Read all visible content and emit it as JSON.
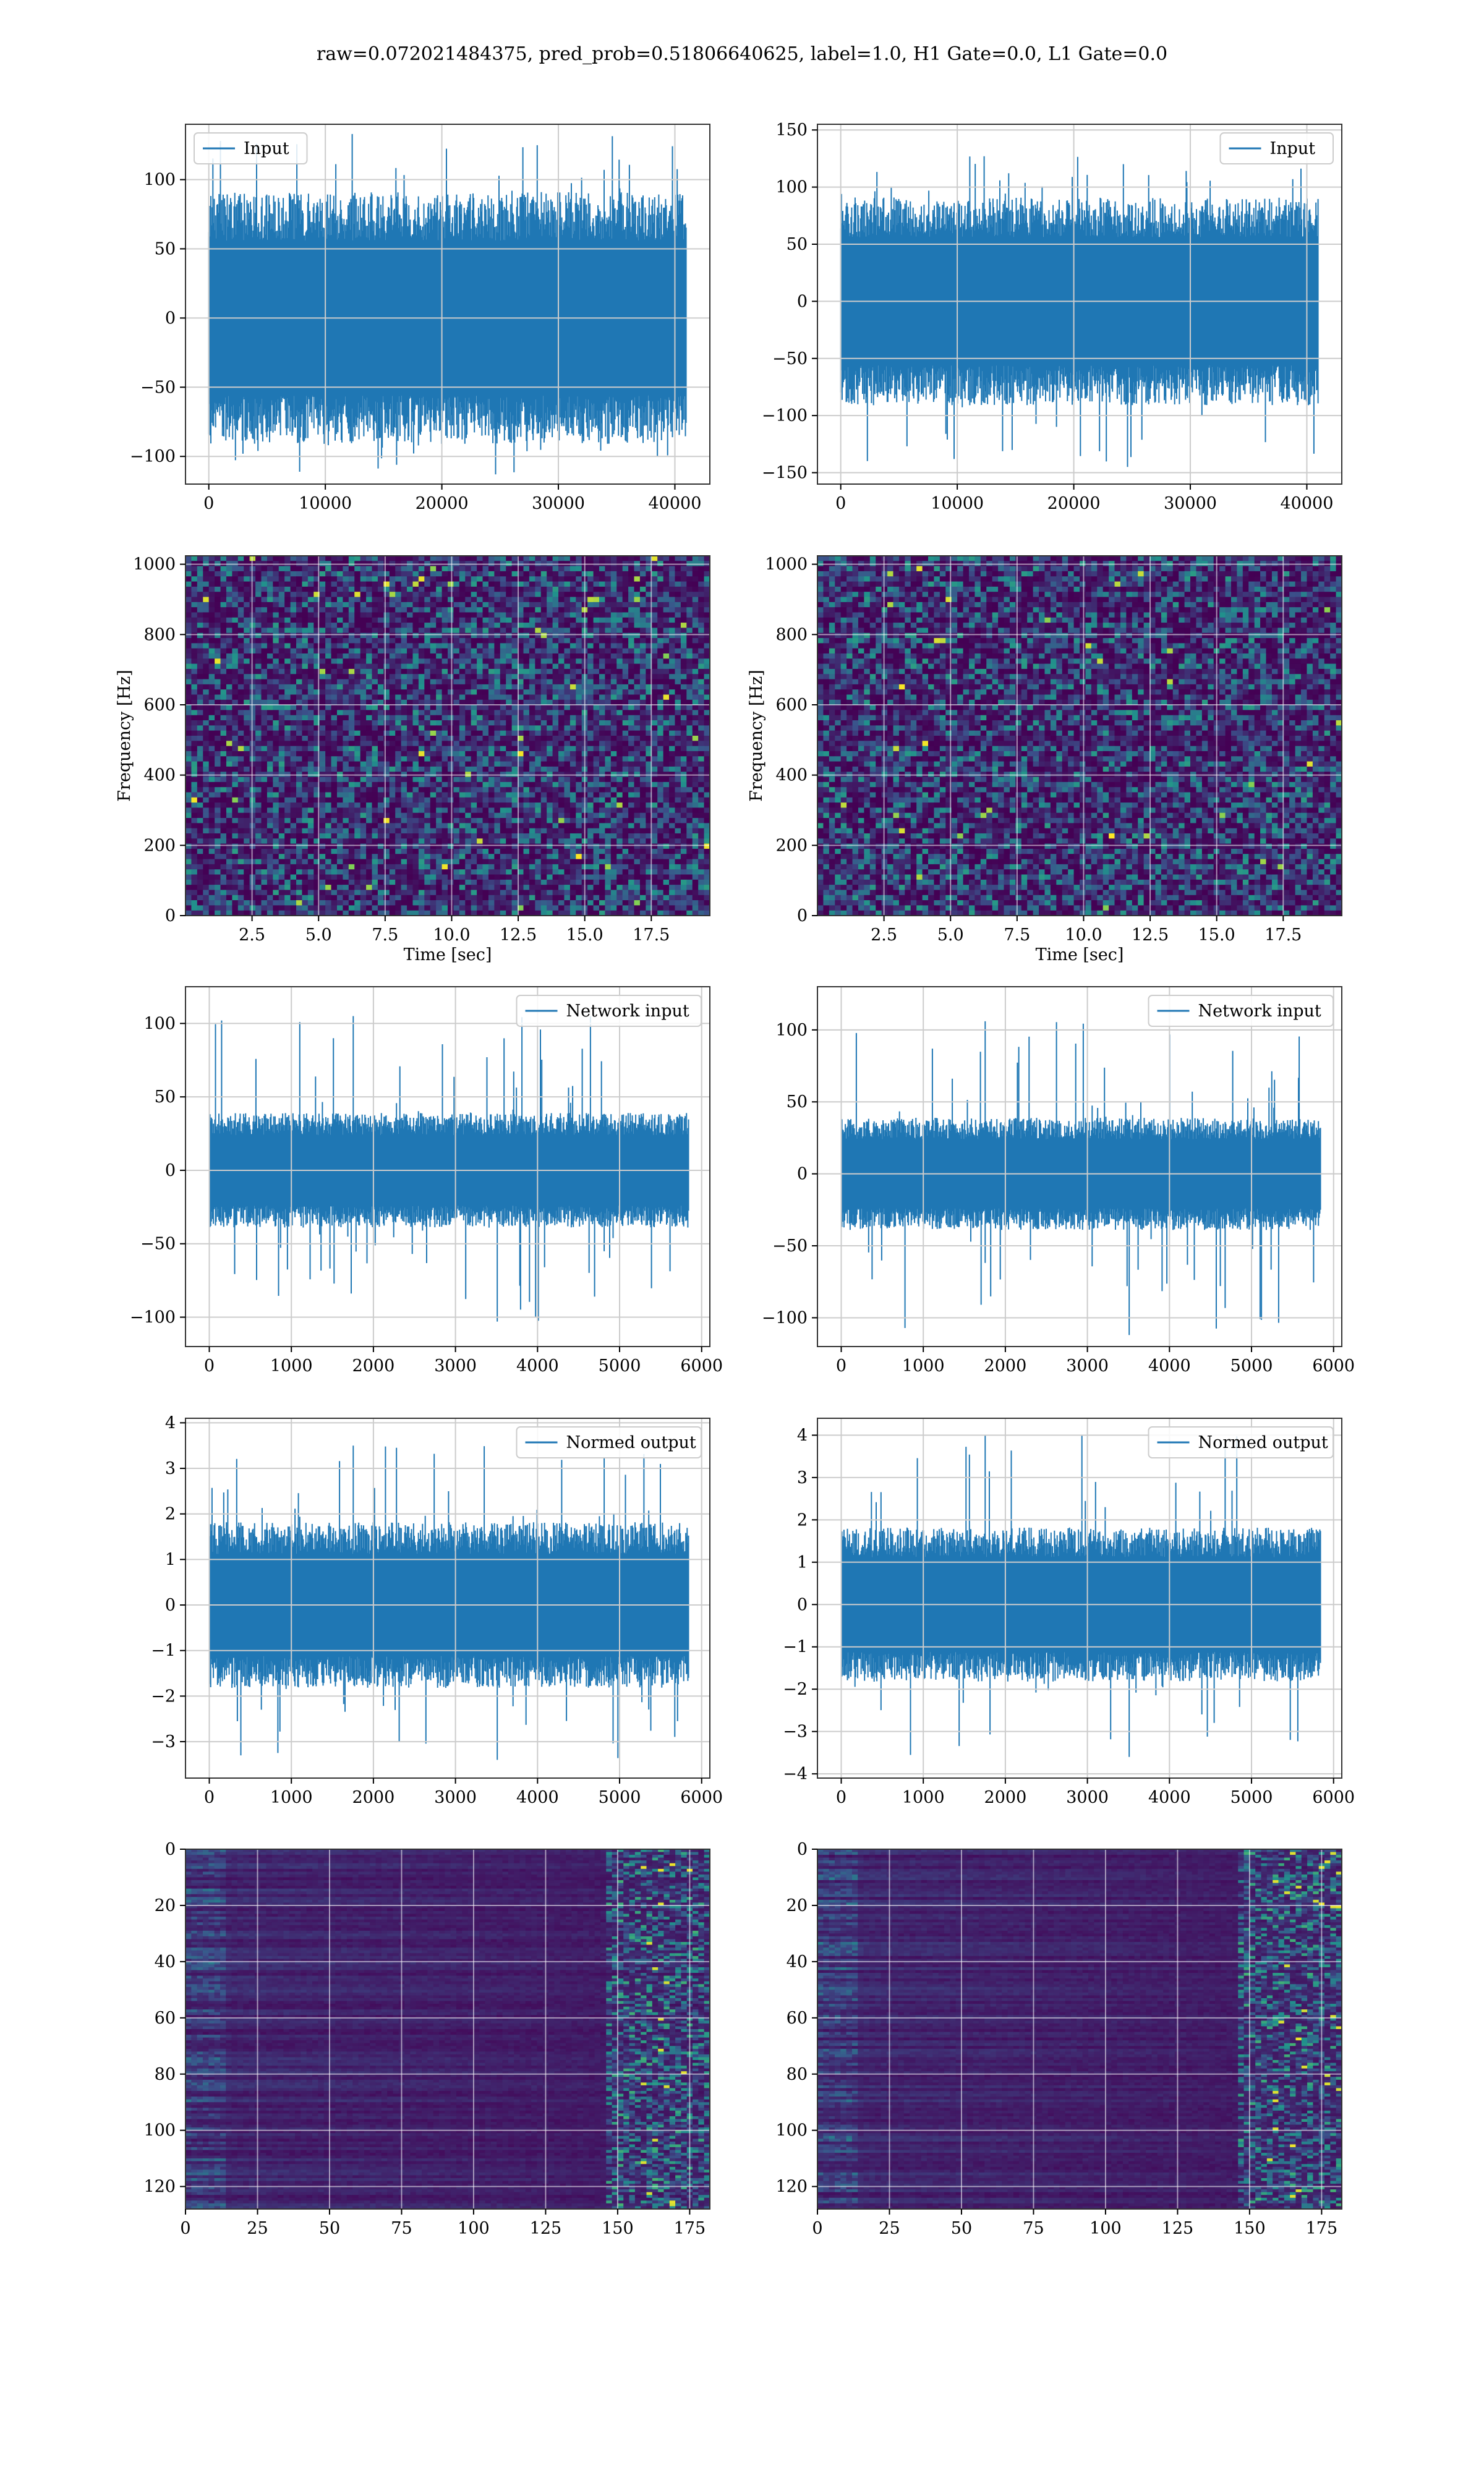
{
  "figure": {
    "title": "raw=0.072021484375, pred_prob=0.51806640625, label=1.0, H1 Gate=0.0, L1 Gate=0.0"
  },
  "colors": {
    "line": "#1f77b4",
    "grid": "#cccccc",
    "heat_low": "#440154",
    "heat_mid": "#21918c",
    "heat_high": "#fde725"
  },
  "chart_data": [
    {
      "id": "input-left",
      "type": "line",
      "row": 0,
      "col": 0,
      "legend": "Input",
      "legend_loc": "upper left",
      "xlim": [
        -2000,
        43000
      ],
      "ylim": [
        -120,
        140
      ],
      "xticks": [
        0,
        10000,
        20000,
        30000,
        40000
      ],
      "yticks": [
        -100,
        -50,
        0,
        50,
        100
      ],
      "signal": {
        "n": 40960,
        "core": 70,
        "peak_max": 133,
        "peak_min": -113
      },
      "grid": true
    },
    {
      "id": "input-right",
      "type": "line",
      "row": 0,
      "col": 1,
      "legend": "Input",
      "legend_loc": "upper right",
      "xlim": [
        -2000,
        43000
      ],
      "ylim": [
        -160,
        155
      ],
      "xticks": [
        0,
        10000,
        20000,
        30000,
        40000
      ],
      "yticks": [
        -150,
        -100,
        -50,
        0,
        50,
        100,
        150
      ],
      "signal": {
        "n": 40960,
        "core": 70,
        "peak_max": 127,
        "peak_min": -145
      },
      "grid": true
    },
    {
      "id": "spectrogram-left",
      "type": "heatmap",
      "row": 1,
      "col": 0,
      "xlabel": "Time [sec]",
      "ylabel": "Frequency [Hz]",
      "xlim": [
        0,
        19.7
      ],
      "ylim": [
        0,
        1024
      ],
      "xticks": [
        2.5,
        5.0,
        7.5,
        10.0,
        12.5,
        15.0,
        17.5
      ],
      "yticks": [
        0,
        200,
        400,
        600,
        800,
        1000
      ],
      "xtick_labels": [
        "2.5",
        "5.0",
        "7.5",
        "10.0",
        "12.5",
        "15.0",
        "17.5"
      ],
      "grid": true
    },
    {
      "id": "spectrogram-right",
      "type": "heatmap",
      "row": 1,
      "col": 1,
      "xlabel": "Time [sec]",
      "ylabel": "Frequency [Hz]",
      "xlim": [
        0,
        19.7
      ],
      "ylim": [
        0,
        1024
      ],
      "xticks": [
        2.5,
        5.0,
        7.5,
        10.0,
        12.5,
        15.0,
        17.5
      ],
      "yticks": [
        0,
        200,
        400,
        600,
        800,
        1000
      ],
      "xtick_labels": [
        "2.5",
        "5.0",
        "7.5",
        "10.0",
        "12.5",
        "15.0",
        "17.5"
      ],
      "grid": true
    },
    {
      "id": "network-input-left",
      "type": "line",
      "row": 2,
      "col": 0,
      "legend": "Network input",
      "legend_loc": "upper right",
      "xlim": [
        -290,
        6100
      ],
      "ylim": [
        -120,
        125
      ],
      "xticks": [
        0,
        1000,
        2000,
        3000,
        4000,
        5000,
        6000
      ],
      "yticks": [
        -100,
        -50,
        0,
        50,
        100
      ],
      "signal": {
        "n": 5840,
        "core": 30,
        "peak_max": 105,
        "peak_min": -103
      },
      "grid": true
    },
    {
      "id": "network-input-right",
      "type": "line",
      "row": 2,
      "col": 1,
      "legend": "Network input",
      "legend_loc": "upper right",
      "xlim": [
        -290,
        6100
      ],
      "ylim": [
        -120,
        130
      ],
      "xticks": [
        0,
        1000,
        2000,
        3000,
        4000,
        5000,
        6000
      ],
      "yticks": [
        -100,
        -50,
        0,
        50,
        100
      ],
      "signal": {
        "n": 5840,
        "core": 30,
        "peak_max": 106,
        "peak_min": -112
      },
      "grid": true
    },
    {
      "id": "normed-output-left",
      "type": "line",
      "row": 3,
      "col": 0,
      "legend": "Normed output",
      "legend_loc": "upper right",
      "xlim": [
        -290,
        6100
      ],
      "ylim": [
        -3.8,
        4.1
      ],
      "xticks": [
        0,
        1000,
        2000,
        3000,
        4000,
        5000,
        6000
      ],
      "yticks": [
        -3,
        -2,
        -1,
        0,
        1,
        2,
        3,
        4
      ],
      "signal": {
        "n": 5840,
        "core": 1.4,
        "peak_max": 3.5,
        "peak_min": -3.4
      },
      "grid": true
    },
    {
      "id": "normed-output-right",
      "type": "line",
      "row": 3,
      "col": 1,
      "legend": "Normed output",
      "legend_loc": "upper right",
      "xlim": [
        -290,
        6100
      ],
      "ylim": [
        -4.1,
        4.4
      ],
      "xticks": [
        0,
        1000,
        2000,
        3000,
        4000,
        5000,
        6000
      ],
      "yticks": [
        -4,
        -3,
        -2,
        -1,
        0,
        1,
        2,
        3,
        4
      ],
      "signal": {
        "n": 5840,
        "core": 1.4,
        "peak_max": 4.0,
        "peak_min": -3.6
      },
      "grid": true
    },
    {
      "id": "feature-map-left",
      "type": "heatmap",
      "row": 4,
      "col": 0,
      "xlim": [
        0,
        182
      ],
      "ylim": [
        128,
        0
      ],
      "xticks": [
        0,
        25,
        50,
        75,
        100,
        125,
        150,
        175
      ],
      "yticks": [
        0,
        20,
        40,
        60,
        80,
        100,
        120
      ],
      "grid": true
    },
    {
      "id": "feature-map-right",
      "type": "heatmap",
      "row": 4,
      "col": 1,
      "xlim": [
        0,
        182
      ],
      "ylim": [
        128,
        0
      ],
      "xticks": [
        0,
        25,
        50,
        75,
        100,
        125,
        150,
        175
      ],
      "yticks": [
        0,
        20,
        40,
        60,
        80,
        100,
        120
      ],
      "grid": true
    }
  ]
}
